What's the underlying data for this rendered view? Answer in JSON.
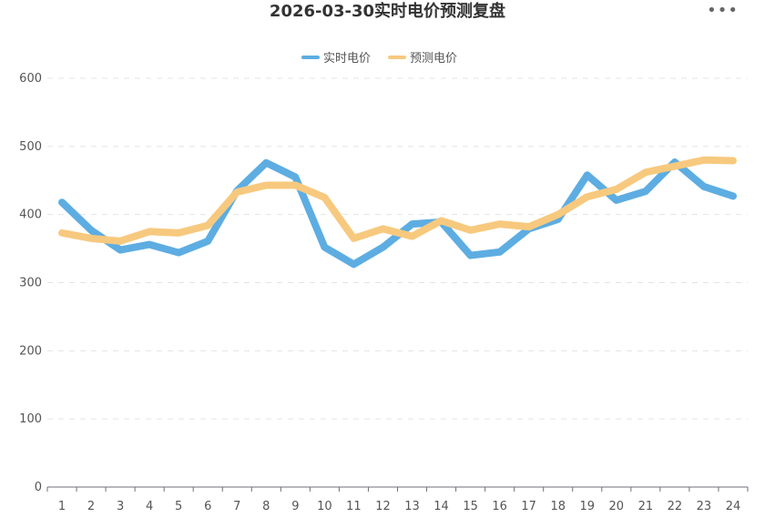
{
  "title": "2026-03-30实时电价预测复盘",
  "menu_icon": "more-horizontal-icon",
  "chart_data": {
    "type": "line",
    "title": "2026-03-30实时电价预测复盘",
    "categories": [
      "1",
      "2",
      "3",
      "4",
      "5",
      "6",
      "7",
      "8",
      "9",
      "10",
      "11",
      "12",
      "13",
      "14",
      "15",
      "16",
      "17",
      "18",
      "19",
      "20",
      "21",
      "22",
      "23",
      "24"
    ],
    "ylim": [
      0,
      600
    ],
    "yticks": [
      0,
      100,
      200,
      300,
      400,
      500,
      600
    ],
    "grid": true,
    "legend_position": "top-center",
    "series": [
      {
        "name": "实时电价",
        "color": "#5dade2",
        "values": [
          418,
          377,
          348,
          356,
          344,
          361,
          435,
          476,
          455,
          352,
          327,
          352,
          386,
          389,
          340,
          345,
          379,
          393,
          458,
          421,
          434,
          477,
          441,
          427
        ]
      },
      {
        "name": "预测电价",
        "color": "#f7c97e",
        "values": [
          373,
          365,
          361,
          375,
          373,
          384,
          433,
          443,
          443,
          425,
          365,
          379,
          368,
          391,
          377,
          386,
          382,
          400,
          426,
          437,
          462,
          471,
          480,
          479
        ]
      }
    ]
  }
}
